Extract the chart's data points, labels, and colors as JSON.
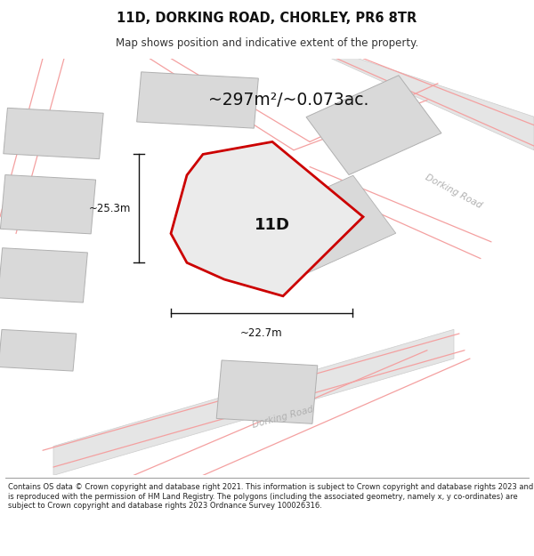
{
  "title": "11D, DORKING ROAD, CHORLEY, PR6 8TR",
  "subtitle": "Map shows position and indicative extent of the property.",
  "area_label": "~297m²/~0.073ac.",
  "plot_label": "11D",
  "dim_width": "~22.7m",
  "dim_height": "~25.3m",
  "road_label_bottom": "Dorking Road",
  "road_label_right": "Dorking Road",
  "footer": "Contains OS data © Crown copyright and database right 2021. This information is subject to Crown copyright and database rights 2023 and is reproduced with the permission of HM Land Registry. The polygons (including the associated geometry, namely x, y co-ordinates) are subject to Crown copyright and database rights 2023 Ordnance Survey 100026316.",
  "bg_color": "#f2f2f2",
  "plot_fill": "#ebebeb",
  "plot_edge": "#cc0000",
  "bldg_fill": "#d9d9d9",
  "bldg_edge": "#b0b0b0",
  "pink_line": "#f4a0a0",
  "road_fill": "#e5e5e5",
  "road_edge": "#cccccc",
  "dim_color": "#111111",
  "text_color": "#111111"
}
